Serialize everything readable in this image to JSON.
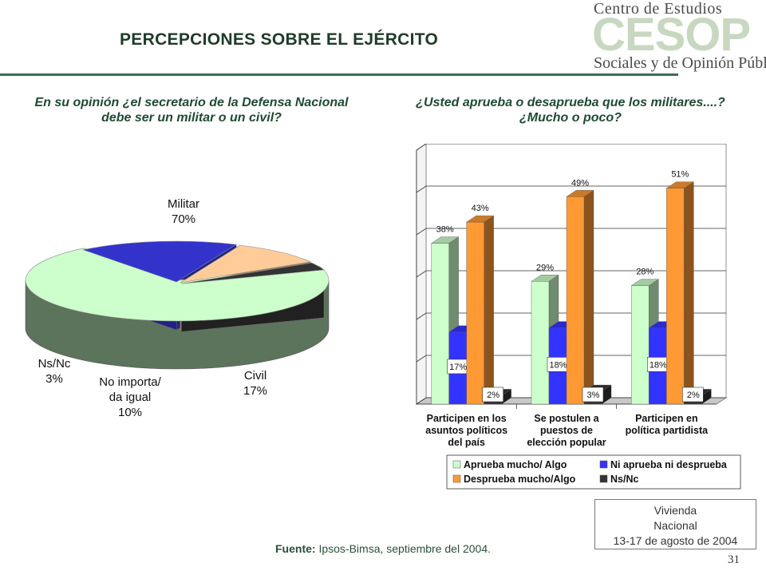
{
  "slide": {
    "title": "PERCEPCIONES SOBRE EL EJÉRCITO",
    "logo": {
      "line1": "Centro de Estudios",
      "big": "CESOP",
      "line3": "Sociales y de Opinión Pública"
    },
    "source_label": "Fuente:",
    "source_text": "Ipsos-Bimsa, septiembre del 2004.",
    "vivienda_lines": [
      "Vivienda",
      "Nacional",
      "13-17 de agosto de 2004"
    ],
    "page_number": "31"
  },
  "chart_data": [
    {
      "type": "pie",
      "title": "En su opinión ¿el secretario de la Defensa Nacional debe ser un militar o un civil?",
      "slices": [
        {
          "label": "Militar",
          "value": 70,
          "value_label": "70%",
          "color": "#ccffcc"
        },
        {
          "label": "Civil",
          "value": 17,
          "value_label": "17%",
          "color": "#3333cc"
        },
        {
          "label": "No importa/ da igual",
          "value": 10,
          "value_label": "10%",
          "color": "#ffcc99"
        },
        {
          "label": "Ns/Nc",
          "value": 3,
          "value_label": "3%",
          "color": "#333333"
        }
      ]
    },
    {
      "type": "bar",
      "title": "¿Usted aprueba o desaprueba que los militares....? ¿Mucho o poco?",
      "categories": [
        [
          "Participen en los",
          "asuntos políticos",
          "del país"
        ],
        [
          "Se postulen a",
          "puestos de",
          "elección popular"
        ],
        [
          "Participen en",
          "política partidista"
        ]
      ],
      "series": [
        {
          "name": "Aprueba mucho/ Algo",
          "values": [
            38,
            29,
            28
          ],
          "labels": [
            "38%",
            "29%",
            "28%"
          ],
          "color": "#ccffcc"
        },
        {
          "name": "Ni aprueba ni desprueba",
          "values": [
            17,
            18,
            18
          ],
          "labels": [
            "17%",
            "18%",
            "18%"
          ],
          "color": "#3333ff"
        },
        {
          "name": "Desprueba mucho/Algo",
          "values": [
            43,
            49,
            51
          ],
          "labels": [
            "43%",
            "49%",
            "51%"
          ],
          "color": "#ff9933"
        },
        {
          "name": "Ns/Nc",
          "values": [
            2,
            3,
            2
          ],
          "labels": [
            "2%",
            "3%",
            "2%"
          ],
          "color": "#333333"
        }
      ],
      "ylim": [
        0,
        60
      ],
      "grid": true,
      "legend": "bottom"
    }
  ]
}
